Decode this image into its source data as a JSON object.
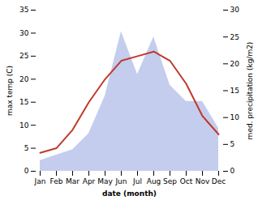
{
  "chart_data": {
    "type": "line",
    "xlabel": "date (month)",
    "ylabel": "max temp (C)",
    "y2label": "med. precipitation (kg/m2)",
    "categories": [
      "Jan",
      "Feb",
      "Mar",
      "Apr",
      "May",
      "Jun",
      "Jul",
      "Aug",
      "Sep",
      "Oct",
      "Nov",
      "Dec"
    ],
    "series": [
      {
        "type": "area",
        "axis": "y2",
        "color": "#b0bce8",
        "values": [
          2,
          3,
          4,
          7,
          14,
          26,
          18,
          25,
          16,
          13,
          13,
          8
        ]
      },
      {
        "type": "line",
        "color": "#c0392b",
        "values": [
          4,
          5,
          9,
          15,
          20,
          24,
          25,
          26,
          24,
          19,
          12,
          8
        ]
      }
    ],
    "ylim": [
      0,
      35
    ],
    "yticks": [
      0,
      5,
      10,
      15,
      20,
      25,
      30,
      35
    ],
    "y2lim": [
      0,
      30
    ],
    "y2ticks": [
      0,
      5,
      10,
      15,
      20,
      25,
      30
    ]
  }
}
